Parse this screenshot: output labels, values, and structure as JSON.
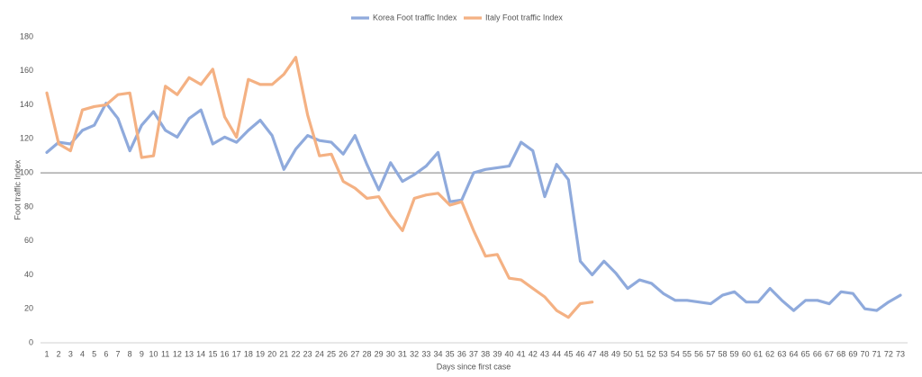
{
  "chart_data": {
    "type": "line",
    "x_label": "Days since first case",
    "y_label": "Foot traffic Index",
    "categories": [
      1,
      2,
      3,
      4,
      5,
      6,
      7,
      8,
      9,
      10,
      11,
      12,
      13,
      14,
      15,
      16,
      17,
      18,
      19,
      20,
      21,
      22,
      23,
      24,
      25,
      26,
      27,
      28,
      29,
      30,
      31,
      32,
      33,
      34,
      35,
      36,
      37,
      38,
      39,
      40,
      41,
      42,
      43,
      44,
      45,
      46,
      47,
      48,
      49,
      50,
      51,
      52,
      53,
      54,
      55,
      56,
      57,
      58,
      59,
      60,
      61,
      62,
      63,
      64,
      65,
      66,
      67,
      68,
      69,
      70,
      71,
      72,
      73
    ],
    "series": [
      {
        "name": "Korea Foot traffic Index",
        "color": "#8faadc",
        "values": [
          112,
          118,
          117,
          125,
          128,
          141,
          132,
          113,
          128,
          136,
          125,
          121,
          132,
          137,
          117,
          121,
          118,
          125,
          131,
          122,
          102,
          114,
          122,
          119,
          118,
          111,
          122,
          105,
          90,
          106,
          95,
          99,
          104,
          112,
          83,
          84,
          100,
          102,
          103,
          104,
          118,
          113,
          86,
          105,
          96,
          48,
          40,
          48,
          41,
          32,
          37,
          35,
          29,
          25,
          25,
          24,
          23,
          28,
          30,
          24,
          24,
          32,
          25,
          19,
          25,
          25,
          23,
          30,
          29,
          20,
          19,
          24,
          28
        ]
      },
      {
        "name": "Italy Foot traffic Index",
        "color": "#f4b183",
        "values": [
          147,
          117,
          113,
          137,
          139,
          140,
          146,
          147,
          109,
          110,
          151,
          146,
          156,
          152,
          161,
          133,
          121,
          155,
          152,
          152,
          158,
          168,
          134,
          110,
          111,
          95,
          91,
          85,
          86,
          75,
          66,
          85,
          87,
          88,
          81,
          83,
          66,
          51,
          52,
          38,
          37,
          32,
          27,
          19,
          15,
          23,
          24,
          null,
          null,
          null,
          null,
          null,
          null,
          null,
          null,
          null,
          null,
          null,
          null,
          null,
          null,
          null,
          null,
          null,
          null,
          null,
          null,
          null,
          null,
          null,
          null,
          null,
          null
        ]
      }
    ],
    "ylim": [
      0,
      180
    ],
    "yticks": [
      0,
      20,
      40,
      60,
      80,
      100,
      120,
      140,
      160,
      180
    ],
    "reference_line": 100,
    "legend": "top"
  }
}
